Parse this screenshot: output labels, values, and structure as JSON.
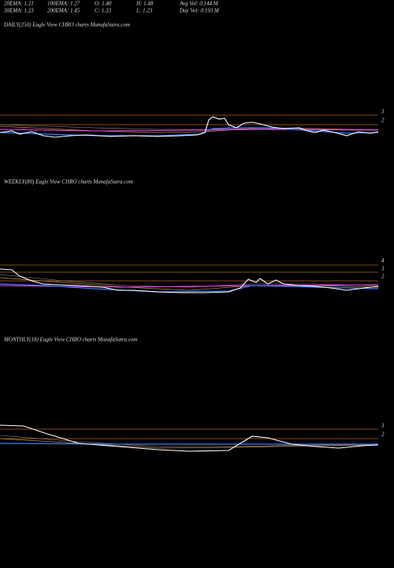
{
  "header": {
    "rows": [
      [
        "20EMA: 1.21",
        "100EMA: 1.27",
        "O: 1.40",
        "H: 1.48",
        "Avg Vol: 0.144  M"
      ],
      [
        "30EMA: 1.23",
        "200EMA: 1.45",
        "C: 1.33",
        "L: 1.23",
        "Day Vol: 0.193  M"
      ]
    ]
  },
  "panels": [
    {
      "title": "DAILY(250) Eagle   View  CHRO charts MunafaSutra.com",
      "levels": [
        3,
        2
      ]
    },
    {
      "title": "WEEKLY(80) Eagle   View  CHRO charts MunafaSutra.com",
      "levels": [
        4,
        3,
        2
      ]
    },
    {
      "title": "MONTHLY(18) Eagle   View  CHRO charts MunafaSutra.com",
      "levels": [
        3,
        2
      ]
    }
  ]
}
